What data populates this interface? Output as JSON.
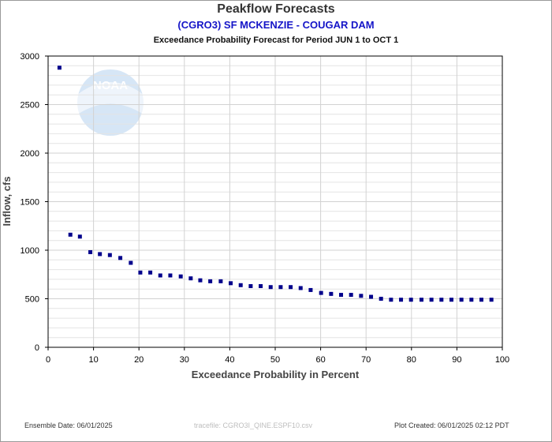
{
  "header": {
    "title": "Peakflow Forecasts",
    "station": "(CGRO3) SF MCKENZIE - COUGAR DAM",
    "period": "Exceedance Probability Forecast for Period JUN 1 to OCT 1"
  },
  "footer": {
    "ensemble_date": "Ensemble Date: 06/01/2025",
    "tracefile": "tracefile: CGRO3I_QINE.ESPF10.csv",
    "plot_created": "Plot Created: 06/01/2025 02:12 PDT"
  },
  "watermark": {
    "icon": "noaa-logo",
    "text": "NOAA"
  },
  "colors": {
    "points": "#00008b",
    "grid": "#d2d2d2",
    "axis": "#000000",
    "station": "#1515c8"
  },
  "chart_data": {
    "type": "scatter",
    "xlabel": "Exceedance Probability in Percent",
    "ylabel": "Inflow, cfs",
    "xlim": [
      0,
      100
    ],
    "ylim": [
      0,
      3000
    ],
    "x_ticks": [
      0,
      10,
      20,
      30,
      40,
      50,
      60,
      70,
      80,
      90,
      100
    ],
    "y_ticks": [
      0,
      500,
      1000,
      1500,
      2000,
      2500,
      3000
    ],
    "grid": true,
    "x": [
      2.5,
      4.9,
      7.0,
      9.3,
      11.4,
      13.6,
      15.9,
      18.2,
      20.3,
      22.5,
      24.7,
      26.9,
      29.2,
      31.4,
      33.5,
      35.7,
      38.0,
      40.2,
      42.4,
      44.6,
      46.8,
      49.0,
      51.2,
      53.4,
      55.6,
      57.8,
      60.1,
      62.3,
      64.5,
      66.7,
      68.9,
      71.1,
      73.3,
      75.5,
      77.7,
      79.9,
      82.2,
      84.4,
      86.6,
      88.8,
      91.0,
      93.2,
      95.4,
      97.6
    ],
    "y": [
      2880,
      1160,
      1140,
      980,
      960,
      950,
      920,
      870,
      770,
      770,
      740,
      740,
      730,
      710,
      690,
      680,
      680,
      660,
      640,
      630,
      630,
      620,
      620,
      620,
      610,
      590,
      560,
      550,
      540,
      540,
      530,
      520,
      500,
      490,
      490,
      490,
      490,
      490,
      490,
      490,
      490,
      490,
      490,
      490
    ]
  }
}
